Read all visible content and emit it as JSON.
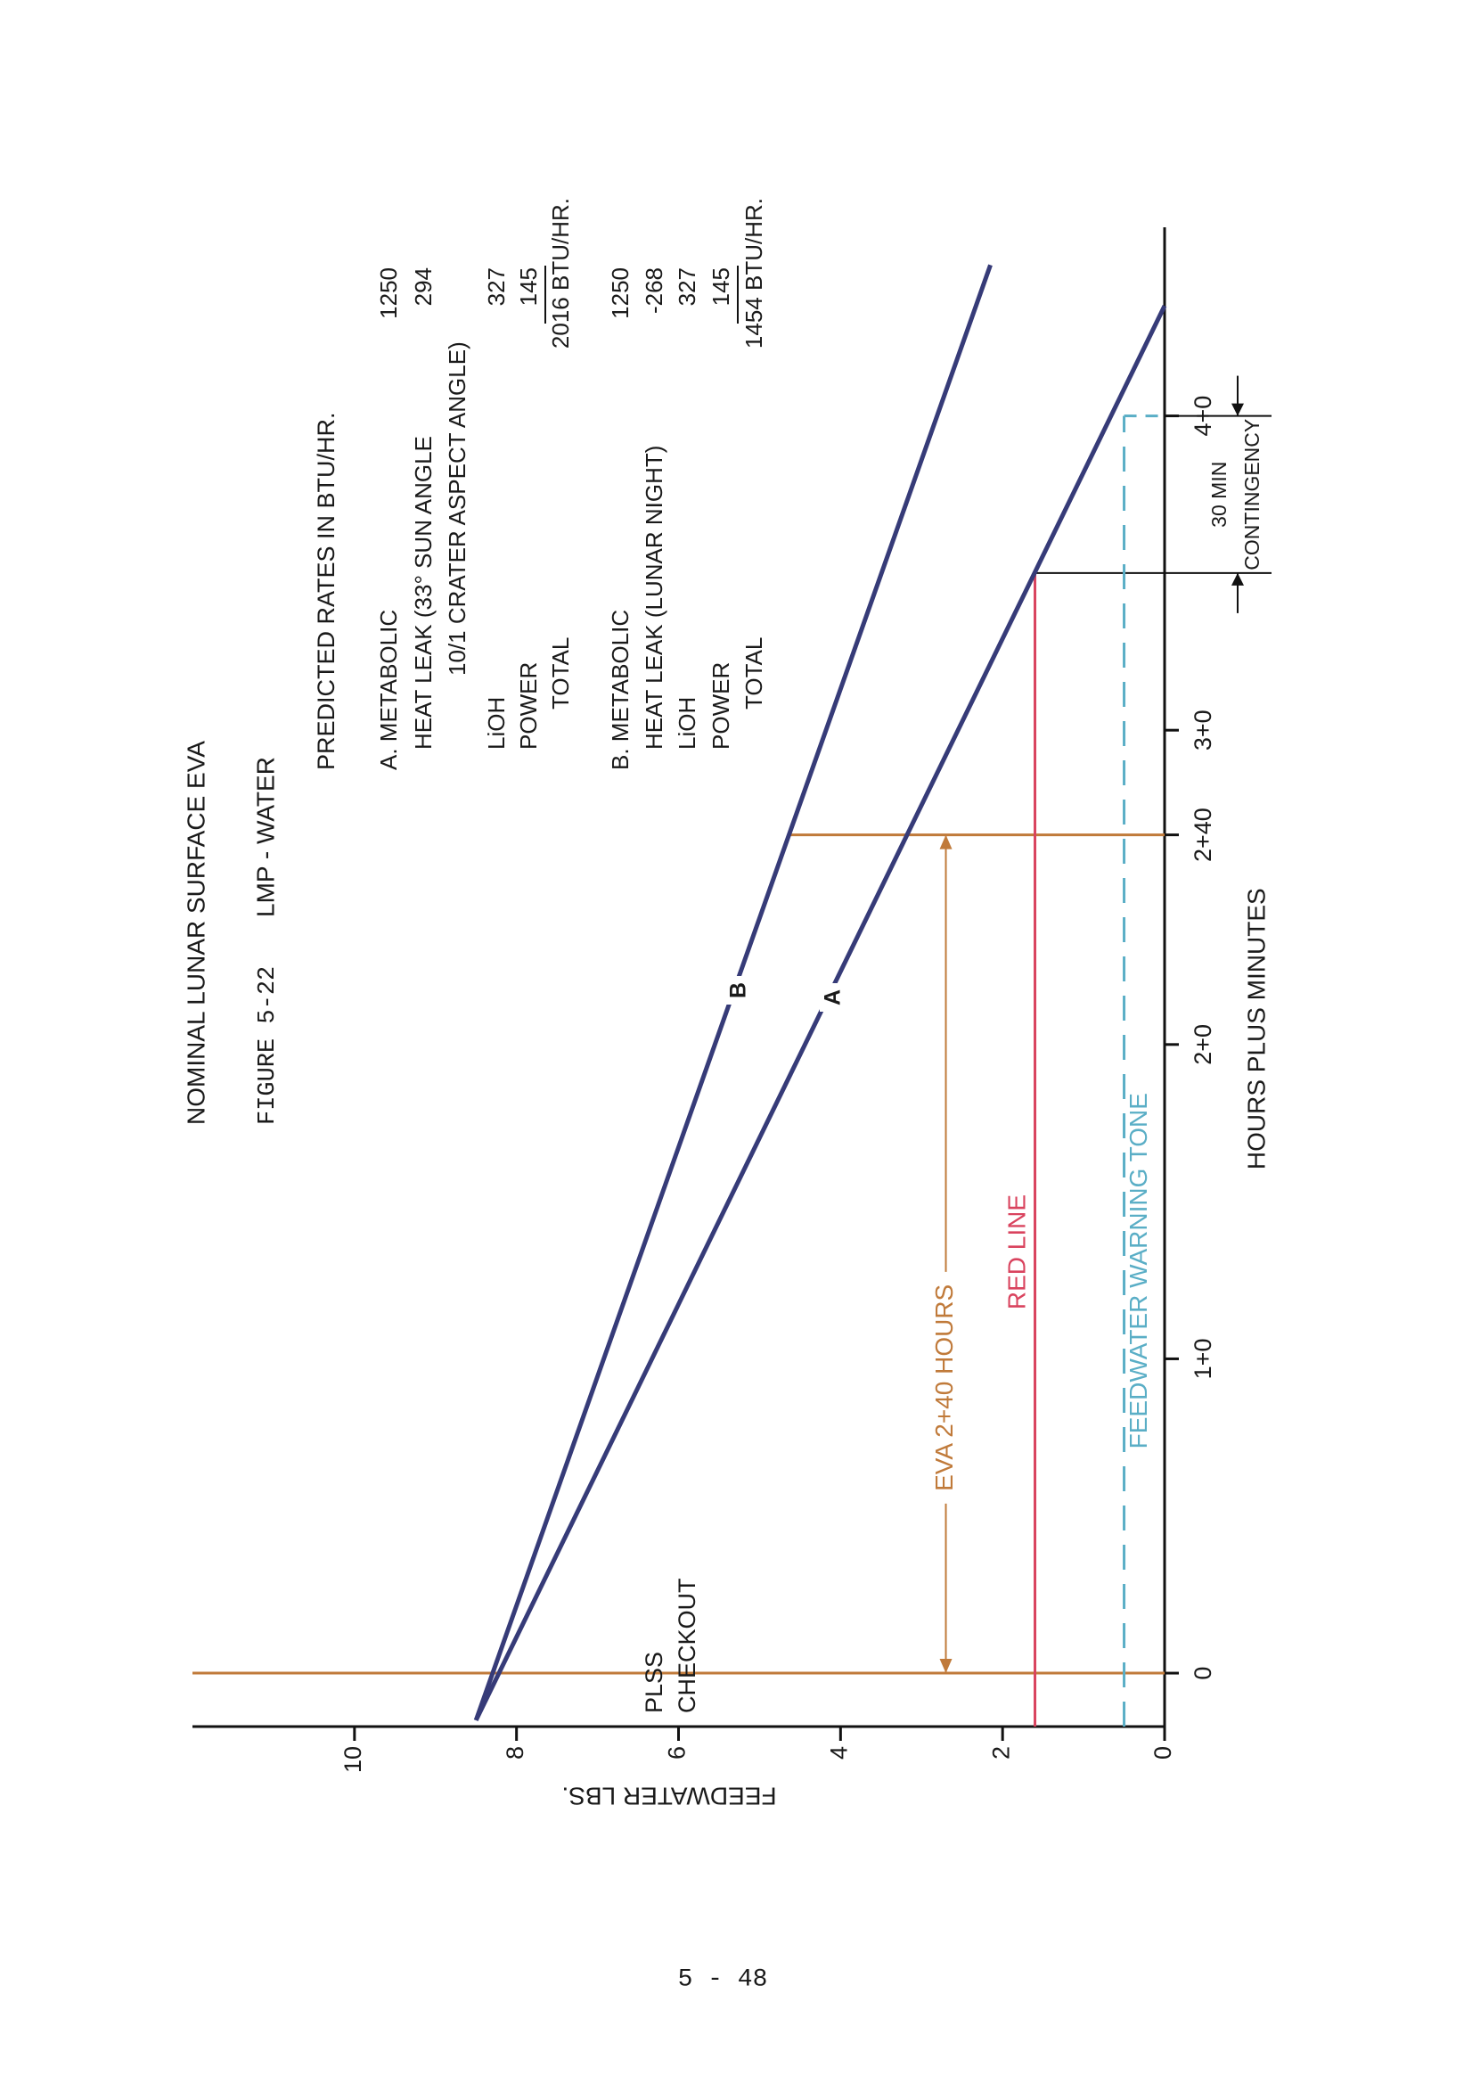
{
  "chart_data": {
    "type": "line",
    "title": "NOMINAL LUNAR SURFACE EVA",
    "figure": "FIGURE 5-22",
    "subtitle": "LMP - WATER",
    "x_label": "HOURS  PLUS  MINUTES",
    "y_label": "FEEDWATER LBS.",
    "xlim": [
      -0.17,
      4.6
    ],
    "ylim": [
      0,
      12
    ],
    "xticks": [
      0,
      {
        "value": 1,
        "label": "1+0"
      },
      {
        "value": 2,
        "label": "2+0"
      },
      {
        "value": 2.667,
        "label": "2+40"
      },
      {
        "value": 3,
        "label": "3+0"
      },
      {
        "value": 4,
        "label": "4+0"
      }
    ],
    "yticks": [
      0,
      2,
      4,
      6,
      8,
      10
    ],
    "series": [
      {
        "name": "A",
        "color": "#363b78",
        "x": [
          -0.15,
          4.35
        ],
        "values": [
          8.5,
          0
        ]
      },
      {
        "name": "B",
        "color": "#363b78",
        "x": [
          -0.15,
          4.48
        ],
        "values": [
          8.5,
          2.15
        ]
      }
    ],
    "red_line": {
      "label": "RED  LINE",
      "value": 1.6,
      "end_x": 3.5,
      "color": "#d9435e"
    },
    "warning_line": {
      "label": "FEEDWATER WARNING TONE",
      "value": 0.5,
      "end_x": 4.0,
      "color": "#5aaec6"
    },
    "eva": {
      "label": "EVA  2+40  HOURS",
      "start_x": 0,
      "end_x": 2.667,
      "value": 2.7,
      "color": "#c07a3a"
    },
    "plss_label": [
      "PLSS",
      "CHECKOUT"
    ],
    "contingency_label": [
      "30 MIN",
      "CONTINGENCY"
    ],
    "rates_title": "PREDICTED RATES IN BTU/HR.",
    "cases": [
      {
        "rows": [
          {
            "label": "A. METABOLIC",
            "value": 1250
          },
          {
            "label": "HEAT LEAK (33° SUN ANGLE",
            "value": 294
          },
          {
            "label": "10/1 CRATER ASPECT ANGLE)"
          },
          {
            "label": "LiOH",
            "value": 327
          },
          {
            "label": "POWER",
            "value": 145
          }
        ],
        "total_label": "TOTAL",
        "total": "2016 BTU/HR."
      },
      {
        "rows": [
          {
            "label": "B. METABOLIC",
            "value": 1250
          },
          {
            "label": "HEAT LEAK (LUNAR NIGHT)",
            "value": -268
          },
          {
            "label": "LiOH",
            "value": 327
          },
          {
            "label": "POWER",
            "value": 145
          }
        ],
        "total_label": "TOTAL",
        "total": "1454 BTU/HR."
      }
    ],
    "page_number": "5 - 48"
  }
}
